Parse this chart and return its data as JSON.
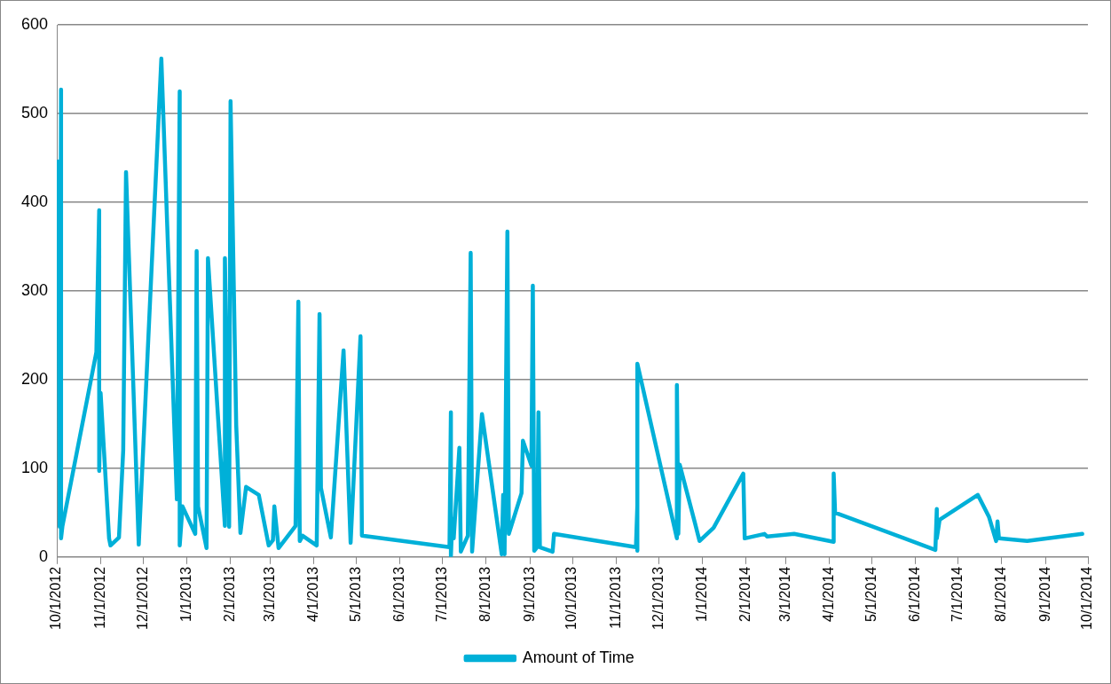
{
  "chart_data": {
    "type": "line",
    "series": [
      {
        "name": "Amount of Time",
        "color": "#00b0d8",
        "x": [
          "2012-10-02",
          "2012-10-03",
          "2012-10-04",
          "2012-10-04",
          "2012-10-05",
          "2012-10-29",
          "2012-10-31",
          "2012-10-31",
          "2012-11-01",
          "2012-11-07",
          "2012-11-08",
          "2012-11-14",
          "2012-11-17",
          "2012-11-19",
          "2012-11-28",
          "2012-12-14",
          "2012-12-25",
          "2012-12-27",
          "2012-12-27",
          "2012-12-29",
          "2013-01-07",
          "2013-01-08",
          "2013-01-09",
          "2013-01-15",
          "2013-01-16",
          "2013-01-28",
          "2013-01-28",
          "2013-01-31",
          "2013-02-01",
          "2013-02-05",
          "2013-02-08",
          "2013-02-12",
          "2013-02-21",
          "2013-02-28",
          "2013-03-03",
          "2013-03-04",
          "2013-03-07",
          "2013-03-19",
          "2013-03-21",
          "2013-03-22",
          "2013-03-24",
          "2013-04-03",
          "2013-04-05",
          "2013-04-06",
          "2013-04-13",
          "2013-04-22",
          "2013-04-27",
          "2013-05-04",
          "2013-05-05",
          "2013-07-06",
          "2013-07-07",
          "2013-07-07",
          "2013-07-08",
          "2013-07-09",
          "2013-07-13",
          "2013-07-14",
          "2013-07-19",
          "2013-07-21",
          "2013-07-22",
          "2013-07-29",
          "2013-08-12",
          "2013-08-13",
          "2013-08-14",
          "2013-08-16",
          "2013-08-17",
          "2013-08-26",
          "2013-08-27",
          "2013-09-02",
          "2013-09-03",
          "2013-09-04",
          "2013-09-06",
          "2013-09-07",
          "2013-09-08",
          "2013-09-17",
          "2013-09-18",
          "2013-11-15",
          "2013-11-16",
          "2013-11-16",
          "2013-11-16",
          "2013-12-14",
          "2013-12-14",
          "2013-12-15",
          "2013-12-16",
          "2013-12-27",
          "2013-12-30",
          "2014-01-09",
          "2014-01-30",
          "2014-01-31",
          "2014-02-14",
          "2014-02-16",
          "2014-03-07",
          "2014-04-04",
          "2014-04-04",
          "2014-04-05",
          "2014-06-15",
          "2014-06-16",
          "2014-06-16",
          "2014-06-18",
          "2014-07-15",
          "2014-07-23",
          "2014-07-28",
          "2014-07-29",
          "2014-07-30",
          "2014-08-19",
          "2014-09-27"
        ],
        "values": [
          446,
          34,
          527,
          21,
          35,
          231,
          391,
          97,
          185,
          21,
          13,
          22,
          120,
          434,
          14,
          562,
          65,
          525,
          13,
          57,
          26,
          345,
          57,
          10,
          337,
          35,
          337,
          34,
          514,
          149,
          27,
          79,
          70,
          13,
          19,
          57,
          10,
          35,
          288,
          18,
          24,
          13,
          274,
          78,
          22,
          233,
          16,
          249,
          24,
          11,
          163,
          1,
          43,
          21,
          123,
          6,
          24,
          343,
          6,
          161,
          3,
          70,
          3,
          367,
          26,
          72,
          131,
          103,
          306,
          7,
          11,
          163,
          11,
          6,
          26,
          11,
          58,
          7,
          218,
          21,
          194,
          26,
          104,
          37,
          18,
          33,
          94,
          21,
          26,
          23,
          26,
          17,
          94,
          50,
          8,
          54,
          21,
          42,
          70,
          45,
          18,
          40,
          21,
          18,
          26
        ]
      }
    ],
    "xlim": [
      "2012-10-01",
      "2014-10-01"
    ],
    "xticks": [
      {
        "value": "2012-10-01",
        "label": "10/1/2012"
      },
      {
        "value": "2012-11-01",
        "label": "11/1/2012"
      },
      {
        "value": "2012-12-01",
        "label": "12/1/2012"
      },
      {
        "value": "2013-01-01",
        "label": "1/1/2013"
      },
      {
        "value": "2013-02-01",
        "label": "2/1/2013"
      },
      {
        "value": "2013-03-01",
        "label": "3/1/2013"
      },
      {
        "value": "2013-04-01",
        "label": "4/1/2013"
      },
      {
        "value": "2013-05-01",
        "label": "5/1/2013"
      },
      {
        "value": "2013-06-01",
        "label": "6/1/2013"
      },
      {
        "value": "2013-07-01",
        "label": "7/1/2013"
      },
      {
        "value": "2013-08-01",
        "label": "8/1/2013"
      },
      {
        "value": "2013-09-01",
        "label": "9/1/2013"
      },
      {
        "value": "2013-10-01",
        "label": "10/1/2013"
      },
      {
        "value": "2013-11-01",
        "label": "11/1/2013"
      },
      {
        "value": "2013-12-01",
        "label": "12/1/2013"
      },
      {
        "value": "2014-01-01",
        "label": "1/1/2014"
      },
      {
        "value": "2014-02-01",
        "label": "2/1/2014"
      },
      {
        "value": "2014-03-01",
        "label": "3/1/2014"
      },
      {
        "value": "2014-04-01",
        "label": "4/1/2014"
      },
      {
        "value": "2014-05-01",
        "label": "5/1/2014"
      },
      {
        "value": "2014-06-01",
        "label": "6/1/2014"
      },
      {
        "value": "2014-07-01",
        "label": "7/1/2014"
      },
      {
        "value": "2014-08-01",
        "label": "8/1/2014"
      },
      {
        "value": "2014-09-01",
        "label": "9/1/2014"
      },
      {
        "value": "2014-10-01",
        "label": "10/1/2014"
      }
    ],
    "ylim": [
      0,
      600
    ],
    "yticks": [
      0,
      100,
      200,
      300,
      400,
      500,
      600
    ],
    "grid": "y",
    "legend": "bottom",
    "marker": "none",
    "line_style": "solid"
  }
}
